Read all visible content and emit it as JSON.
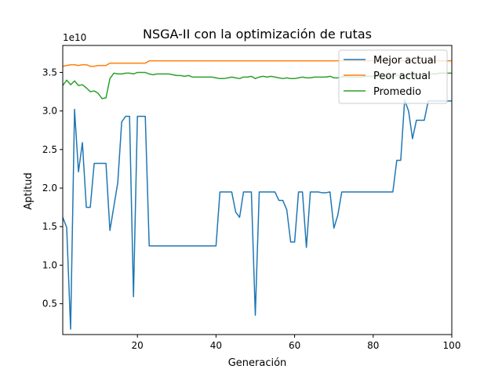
{
  "chart_data": {
    "type": "line",
    "title": "NSGA-II con la optimización de rutas",
    "xlabel": "Generación",
    "ylabel": "Aptitud",
    "y_offset_label": "1e10",
    "xlim": [
      1,
      100
    ],
    "ylim": [
      0.1,
      3.85
    ],
    "x_ticks": [
      20,
      40,
      60,
      80,
      100
    ],
    "x_tick_labels": [
      "20",
      "40",
      "60",
      "80",
      "100"
    ],
    "y_ticks": [
      0.5,
      1.0,
      1.5,
      2.0,
      2.5,
      3.0,
      3.5
    ],
    "y_tick_labels": [
      "0.5",
      "1.0",
      "1.5",
      "2.0",
      "2.5",
      "3.0",
      "3.5"
    ],
    "grid": false,
    "legend_position": "top-right",
    "x": [
      1,
      2,
      3,
      4,
      5,
      6,
      7,
      8,
      9,
      10,
      11,
      12,
      13,
      14,
      15,
      16,
      17,
      18,
      19,
      20,
      21,
      22,
      23,
      24,
      25,
      26,
      27,
      28,
      29,
      30,
      31,
      32,
      33,
      34,
      35,
      36,
      37,
      38,
      39,
      40,
      41,
      42,
      43,
      44,
      45,
      46,
      47,
      48,
      49,
      50,
      51,
      52,
      53,
      54,
      55,
      56,
      57,
      58,
      59,
      60,
      61,
      62,
      63,
      64,
      65,
      66,
      67,
      68,
      69,
      70,
      71,
      72,
      73,
      74,
      75,
      76,
      77,
      78,
      79,
      80,
      81,
      82,
      83,
      84,
      85,
      86,
      87,
      88,
      89,
      90,
      91,
      92,
      93,
      94,
      95,
      96,
      97,
      98,
      99,
      100
    ],
    "series": [
      {
        "name": "Mejor actual",
        "color": "#1f77b4",
        "values": [
          1.62,
          1.49,
          0.17,
          3.02,
          2.21,
          2.59,
          1.75,
          1.75,
          2.32,
          2.32,
          2.32,
          2.32,
          1.45,
          1.76,
          2.07,
          2.86,
          2.93,
          2.93,
          0.59,
          2.93,
          2.93,
          2.93,
          1.25,
          1.25,
          1.25,
          1.25,
          1.25,
          1.25,
          1.25,
          1.25,
          1.25,
          1.25,
          1.25,
          1.25,
          1.25,
          1.25,
          1.25,
          1.25,
          1.25,
          1.25,
          1.95,
          1.95,
          1.95,
          1.95,
          1.69,
          1.62,
          1.95,
          1.95,
          1.95,
          0.35,
          1.95,
          1.95,
          1.95,
          1.95,
          1.95,
          1.84,
          1.84,
          1.72,
          1.3,
          1.3,
          1.95,
          1.95,
          1.23,
          1.95,
          1.95,
          1.95,
          1.94,
          1.94,
          1.95,
          1.48,
          1.65,
          1.95,
          1.95,
          1.95,
          1.95,
          1.95,
          1.95,
          1.95,
          1.95,
          1.95,
          1.95,
          1.95,
          1.95,
          1.95,
          1.95,
          2.36,
          2.36,
          3.14,
          3.0,
          2.64,
          2.88,
          2.88,
          2.88,
          3.13,
          3.13,
          3.13,
          3.13,
          3.13,
          3.13,
          3.13
        ]
      },
      {
        "name": "Peor actual",
        "color": "#ff7f0e",
        "values": [
          3.58,
          3.59,
          3.6,
          3.6,
          3.59,
          3.6,
          3.6,
          3.58,
          3.58,
          3.59,
          3.59,
          3.59,
          3.62,
          3.62,
          3.62,
          3.62,
          3.62,
          3.62,
          3.62,
          3.62,
          3.62,
          3.62,
          3.65,
          3.65,
          3.65,
          3.65,
          3.65,
          3.65,
          3.65,
          3.65,
          3.65,
          3.65,
          3.65,
          3.65,
          3.65,
          3.65,
          3.65,
          3.65,
          3.65,
          3.65,
          3.65,
          3.65,
          3.65,
          3.65,
          3.65,
          3.65,
          3.65,
          3.65,
          3.65,
          3.65,
          3.65,
          3.65,
          3.65,
          3.65,
          3.65,
          3.65,
          3.65,
          3.65,
          3.65,
          3.65,
          3.65,
          3.65,
          3.65,
          3.65,
          3.65,
          3.65,
          3.65,
          3.65,
          3.65,
          3.65,
          3.65,
          3.65,
          3.65,
          3.65,
          3.65,
          3.65,
          3.65,
          3.65,
          3.65,
          3.65,
          3.65,
          3.65,
          3.65,
          3.65,
          3.65,
          3.65,
          3.65,
          3.65,
          3.65,
          3.65,
          3.65,
          3.65,
          3.65,
          3.65,
          3.65,
          3.65,
          3.65,
          3.65,
          3.65,
          3.65
        ]
      },
      {
        "name": "Promedio",
        "color": "#2ca02c",
        "values": [
          3.33,
          3.4,
          3.34,
          3.39,
          3.33,
          3.34,
          3.3,
          3.25,
          3.26,
          3.23,
          3.16,
          3.17,
          3.42,
          3.49,
          3.48,
          3.48,
          3.49,
          3.49,
          3.48,
          3.5,
          3.5,
          3.5,
          3.48,
          3.47,
          3.48,
          3.48,
          3.48,
          3.48,
          3.47,
          3.46,
          3.46,
          3.45,
          3.46,
          3.44,
          3.44,
          3.44,
          3.44,
          3.44,
          3.44,
          3.43,
          3.42,
          3.42,
          3.43,
          3.44,
          3.43,
          3.42,
          3.44,
          3.44,
          3.45,
          3.42,
          3.44,
          3.45,
          3.44,
          3.45,
          3.44,
          3.43,
          3.42,
          3.43,
          3.42,
          3.42,
          3.43,
          3.44,
          3.43,
          3.43,
          3.44,
          3.44,
          3.44,
          3.44,
          3.45,
          3.43,
          3.43,
          3.44,
          3.45,
          3.44,
          3.44,
          3.44,
          3.44,
          3.45,
          3.45,
          3.45,
          3.45,
          3.45,
          3.45,
          3.45,
          3.45,
          3.46,
          3.47,
          3.46,
          3.47,
          3.46,
          3.47,
          3.47,
          3.48,
          3.48,
          3.48,
          3.48,
          3.49,
          3.49,
          3.49,
          3.49
        ]
      }
    ]
  }
}
